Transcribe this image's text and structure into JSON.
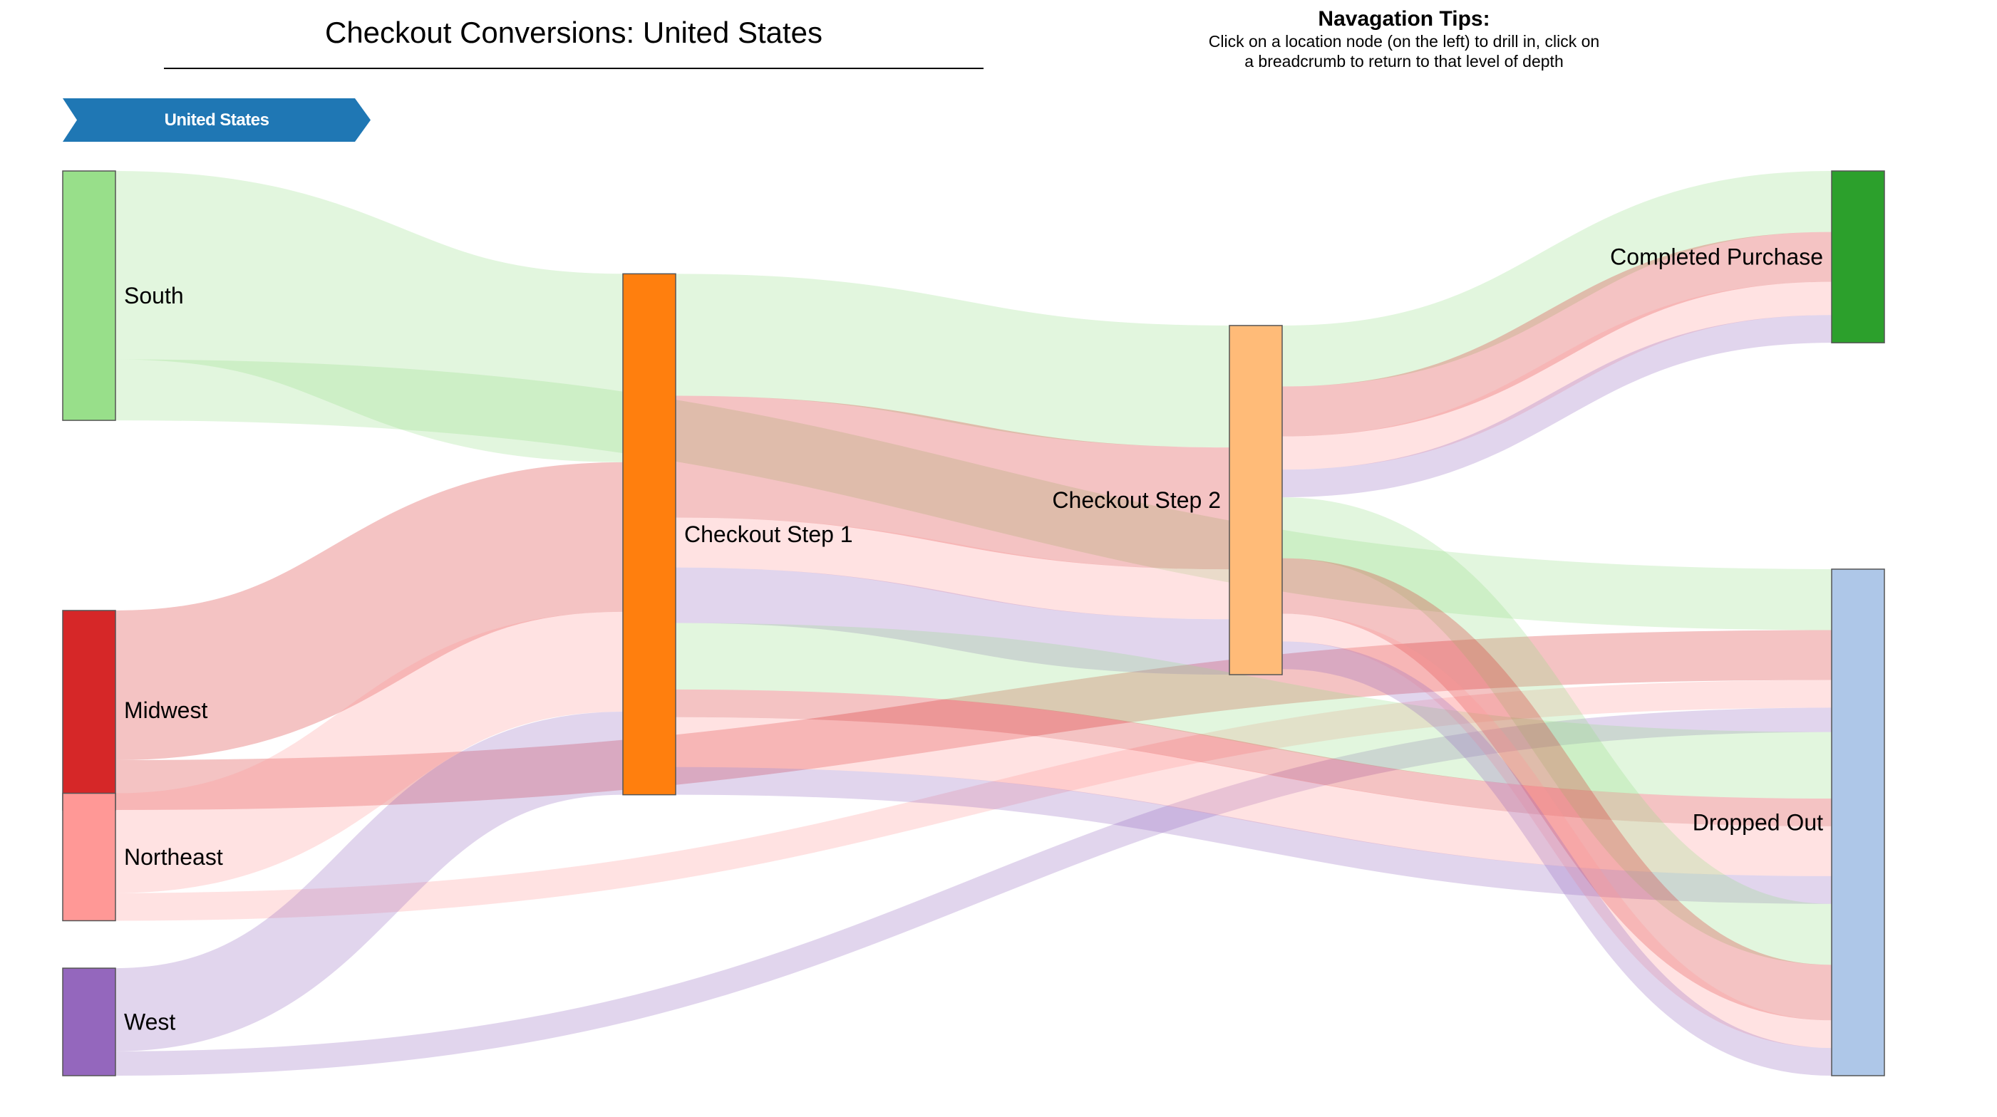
{
  "title": "Checkout Conversions: United States",
  "tips": {
    "heading": "Navagation Tips:",
    "body": "Click on a location node (on the left) to drill in, click on a breadcrumb to return to that level of depth"
  },
  "breadcrumb": {
    "label": "United States",
    "color": "#1f77b4"
  },
  "nodes": [
    {
      "id": "south",
      "label": "South",
      "color": "#98df8a",
      "column": 0,
      "label_side": "right"
    },
    {
      "id": "midwest",
      "label": "Midwest",
      "color": "#d62728",
      "column": 0,
      "label_side": "right"
    },
    {
      "id": "northeast",
      "label": "Northeast",
      "color": "#ff9896",
      "column": 0,
      "label_side": "right"
    },
    {
      "id": "west",
      "label": "West",
      "color": "#9467bd",
      "column": 0,
      "label_side": "right"
    },
    {
      "id": "step1",
      "label": "Checkout Step 1",
      "color": "#ff7f0e",
      "column": 1,
      "label_side": "right"
    },
    {
      "id": "step2",
      "label": "Checkout Step 2",
      "color": "#ffbb78",
      "column": 2,
      "label_side": "left"
    },
    {
      "id": "completed",
      "label": "Completed Purchase",
      "color": "#2ca02c",
      "column": 3,
      "label_side": "left"
    },
    {
      "id": "dropped",
      "label": "Dropped Out",
      "color": "#aec7e8",
      "column": 3,
      "label_side": "left"
    }
  ],
  "links": [
    {
      "source": "south",
      "target": "step1",
      "value": 170,
      "region": "south"
    },
    {
      "source": "south",
      "target": "dropped",
      "value": 55,
      "region": "south"
    },
    {
      "source": "midwest",
      "target": "step1",
      "value": 135,
      "region": "midwest"
    },
    {
      "source": "midwest",
      "target": "dropped",
      "value": 45,
      "region": "midwest"
    },
    {
      "source": "northeast",
      "target": "step1",
      "value": 90,
      "region": "northeast"
    },
    {
      "source": "northeast",
      "target": "dropped",
      "value": 25,
      "region": "northeast"
    },
    {
      "source": "west",
      "target": "step1",
      "value": 75,
      "region": "west"
    },
    {
      "source": "west",
      "target": "dropped",
      "value": 22,
      "region": "west"
    },
    {
      "source": "step1",
      "target": "step2",
      "value": 110,
      "region": "south"
    },
    {
      "source": "step1",
      "target": "step2",
      "value": 110,
      "region": "midwest"
    },
    {
      "source": "step1",
      "target": "step2",
      "value": 45,
      "region": "northeast"
    },
    {
      "source": "step1",
      "target": "step2",
      "value": 50,
      "region": "west"
    },
    {
      "source": "step1",
      "target": "dropped",
      "value": 60,
      "region": "south"
    },
    {
      "source": "step1",
      "target": "dropped",
      "value": 25,
      "region": "midwest"
    },
    {
      "source": "step1",
      "target": "dropped",
      "value": 45,
      "region": "northeast"
    },
    {
      "source": "step1",
      "target": "dropped",
      "value": 25,
      "region": "west"
    },
    {
      "source": "step2",
      "target": "completed",
      "value": 55,
      "region": "south"
    },
    {
      "source": "step2",
      "target": "completed",
      "value": 45,
      "region": "midwest"
    },
    {
      "source": "step2",
      "target": "completed",
      "value": 30,
      "region": "northeast"
    },
    {
      "source": "step2",
      "target": "completed",
      "value": 25,
      "region": "west"
    },
    {
      "source": "step2",
      "target": "dropped",
      "value": 55,
      "region": "south"
    },
    {
      "source": "step2",
      "target": "dropped",
      "value": 50,
      "region": "midwest"
    },
    {
      "source": "step2",
      "target": "dropped",
      "value": 25,
      "region": "northeast"
    },
    {
      "source": "step2",
      "target": "dropped",
      "value": 25,
      "region": "west"
    }
  ]
}
